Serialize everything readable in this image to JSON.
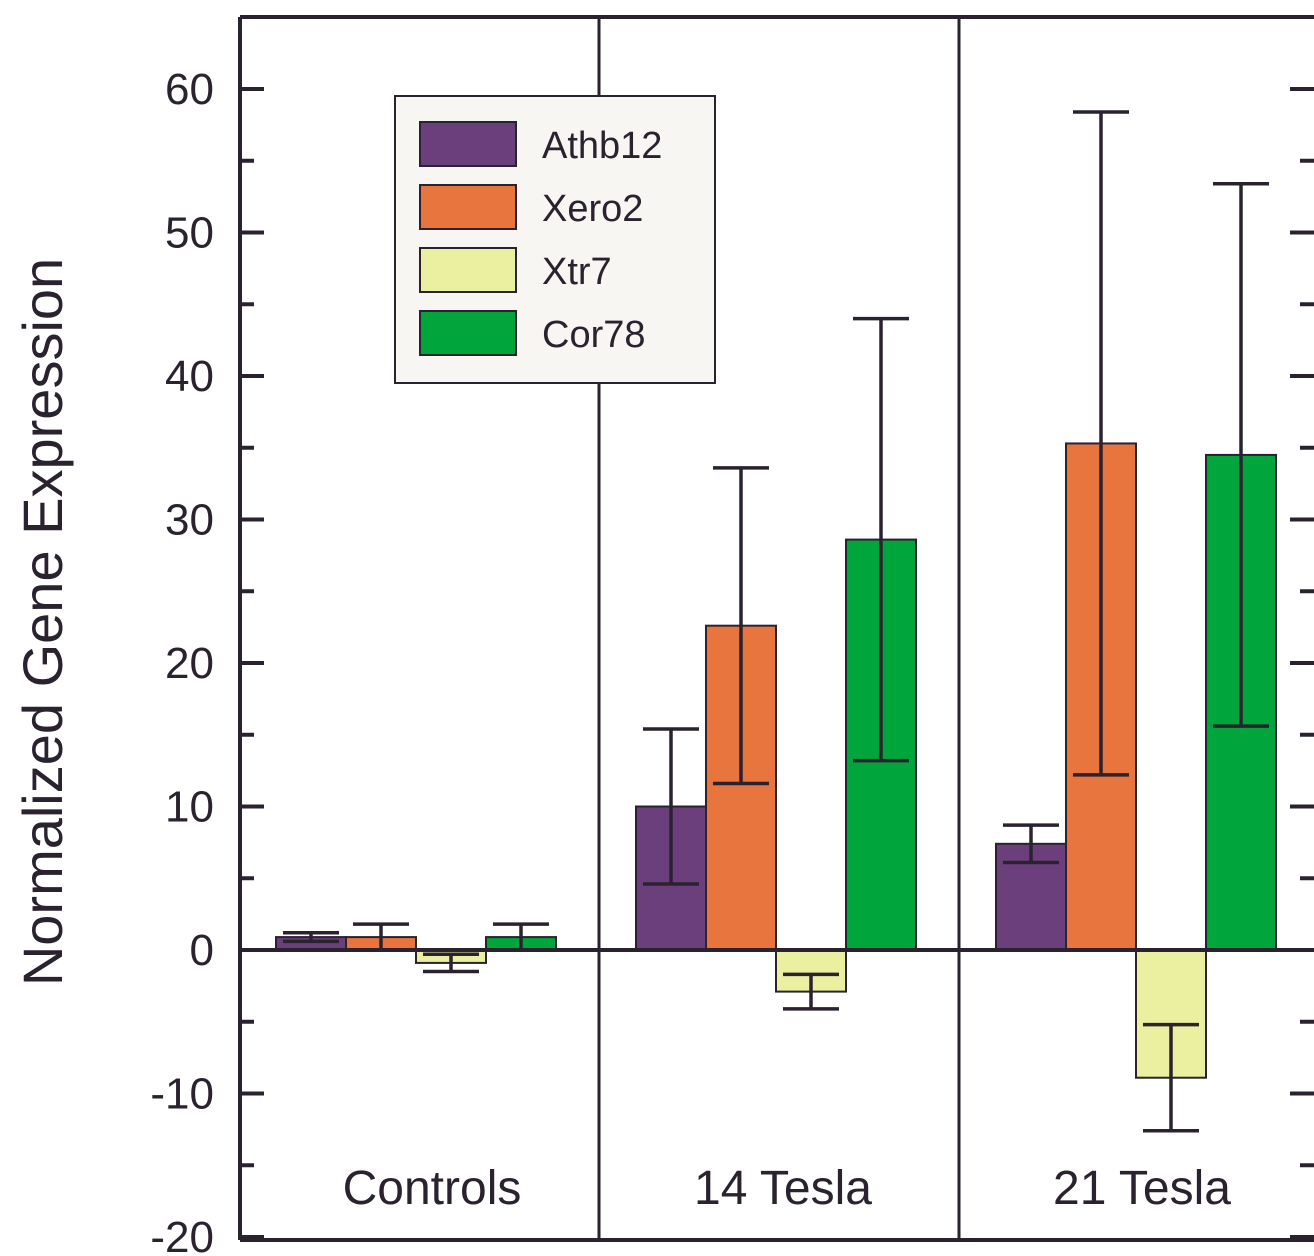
{
  "chart_data": {
    "type": "bar",
    "title": "",
    "xlabel": "",
    "ylabel": "Normalized Gene Expression",
    "ylim": [
      -20,
      65
    ],
    "yticks": [
      -20,
      -10,
      0,
      10,
      20,
      30,
      40,
      50,
      60
    ],
    "categories": [
      "Controls",
      "14 Tesla",
      "21 Tesla"
    ],
    "series": [
      {
        "name": "Athb12",
        "color": "#6b3f7b",
        "values": [
          0.9,
          10.0,
          7.4
        ],
        "error": [
          0.3,
          5.4,
          1.3
        ]
      },
      {
        "name": "Xero2",
        "color": "#e8743e",
        "values": [
          0.9,
          22.6,
          35.3
        ],
        "error": [
          0.9,
          11.0,
          23.1
        ]
      },
      {
        "name": "Xtr7",
        "color": "#eaf0a0",
        "values": [
          -0.9,
          -2.9,
          -8.9
        ],
        "error": [
          0.6,
          1.2,
          3.7
        ]
      },
      {
        "name": "Cor78",
        "color": "#00a63c",
        "values": [
          0.9,
          28.6,
          34.5
        ],
        "error": [
          0.9,
          15.4,
          18.9
        ]
      }
    ],
    "legend": "top-left",
    "grid": false
  }
}
